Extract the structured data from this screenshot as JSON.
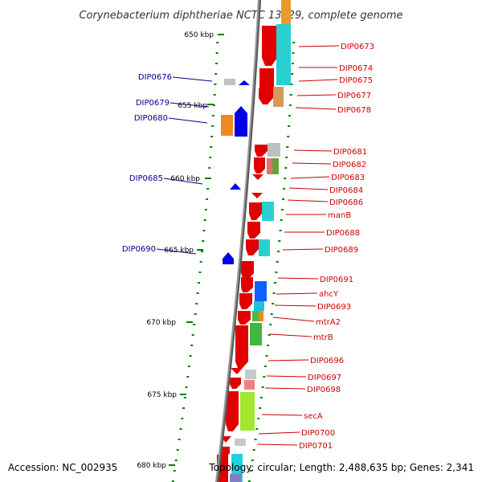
{
  "title": "Corynebacterium diphtheriae NCTC 13129, complete genome",
  "footer": {
    "accession": "Accession: NC_002935",
    "topology": "Topology: circular; Length: 2,488,635 bp; Genes: 2,341"
  },
  "colors": {
    "forward_gene": "#e00000",
    "reverse_gene": "#0000e6",
    "label_forward": "#cc0000",
    "label_reverse": "#00008b",
    "backbone": "#7a7a7a",
    "tick": "#008000"
  },
  "scale": {
    "unit": "kbp",
    "ticks": [
      "650 kbp",
      "655 kbp",
      "660 kbp",
      "665 kbp",
      "670 kbp",
      "675 kbp",
      "680 kbp"
    ]
  },
  "labels_forward": [
    "DIP0673",
    "DIP0674",
    "DIP0675",
    "DIP0677",
    "DIP0678",
    "DIP0681",
    "DIP0682",
    "DIP0683",
    "DIP0684",
    "DIP0686",
    "manB",
    "DIP0688",
    "DIP0689",
    "DIP0691",
    "ahcY",
    "DIP0693",
    "mtrA2",
    "mtrB",
    "DIP0696",
    "DIP0697",
    "DIP0698",
    "secA",
    "DIP0700",
    "DIP0701"
  ],
  "labels_reverse": [
    "DIP0676",
    "DIP0679",
    "DIP0680",
    "DIP0685",
    "DIP0690"
  ]
}
